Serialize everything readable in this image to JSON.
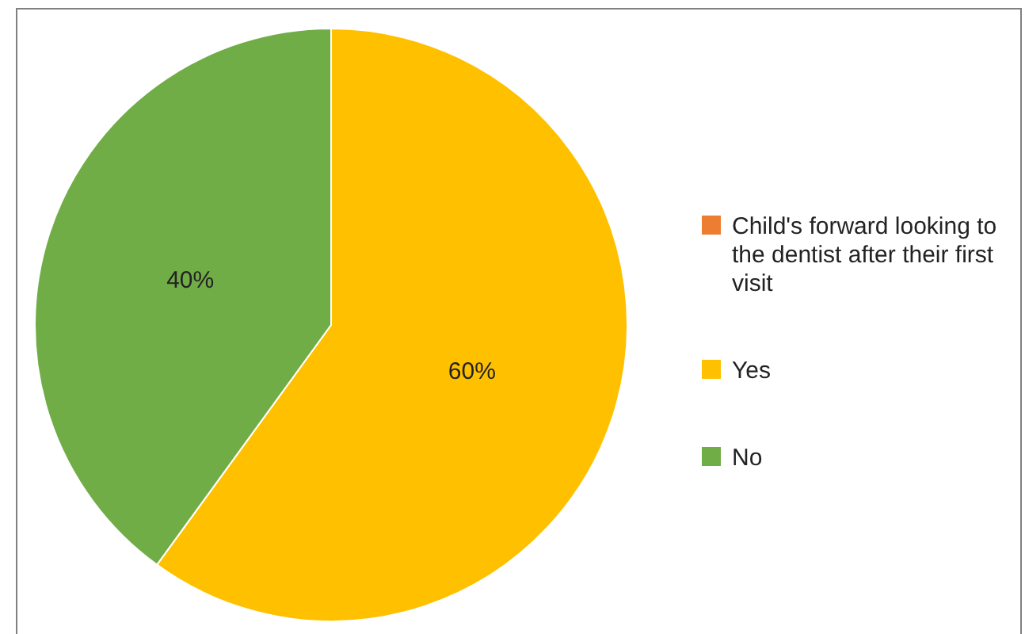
{
  "chart_data": {
    "type": "pie",
    "categories": [
      "Child's forward looking to the dentist after their first visit",
      "Yes",
      "No"
    ],
    "values": [
      0,
      60,
      40
    ],
    "colors": [
      "#ed7d31",
      "#ffc000",
      "#70ad47"
    ],
    "value_labels": [
      null,
      "60%",
      "40%"
    ],
    "legend": "right"
  }
}
